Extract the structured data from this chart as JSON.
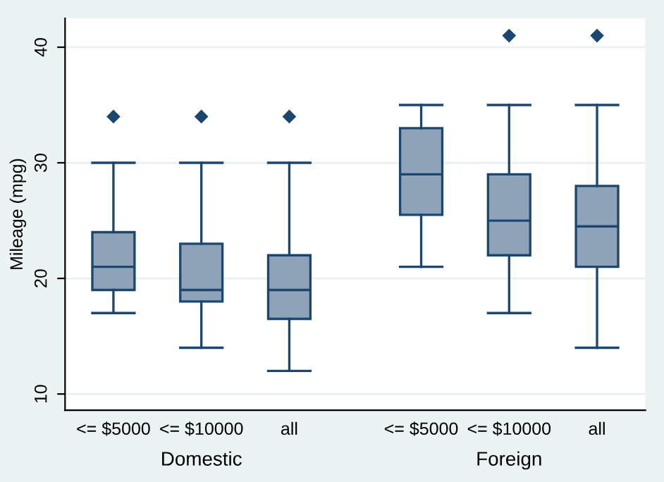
{
  "chart_data": {
    "type": "box",
    "ylabel": "Mileage (mpg)",
    "categories": [
      "<= $5000",
      "<= $10000",
      "all",
      "<= $5000",
      "<= $10000",
      "all"
    ],
    "boxes": [
      {
        "low": 17,
        "q1": 19,
        "median": 21,
        "q3": 24,
        "high": 30,
        "outliers": [
          34
        ]
      },
      {
        "low": 14,
        "q1": 18,
        "median": 19,
        "q3": 23,
        "high": 30,
        "outliers": [
          34
        ]
      },
      {
        "low": 12,
        "q1": 16.5,
        "median": 19,
        "q3": 22,
        "high": 30,
        "outliers": [
          34
        ]
      },
      {
        "low": 21,
        "q1": 25.5,
        "median": 29,
        "q3": 33,
        "high": 35
      },
      {
        "low": 17,
        "q1": 22,
        "median": 25,
        "q3": 29,
        "high": 35,
        "outliers": [
          41
        ]
      },
      {
        "low": 14,
        "q1": 21,
        "median": 24.5,
        "q3": 28,
        "high": 35,
        "outliers": [
          41
        ]
      }
    ],
    "color": "#8ea3b8",
    "ylim": [
      8.6,
      42.5
    ],
    "yticks": [
      10,
      20,
      30,
      40
    ],
    "grid": "y",
    "annotations": [
      "Domestic",
      "Foreign"
    ]
  }
}
